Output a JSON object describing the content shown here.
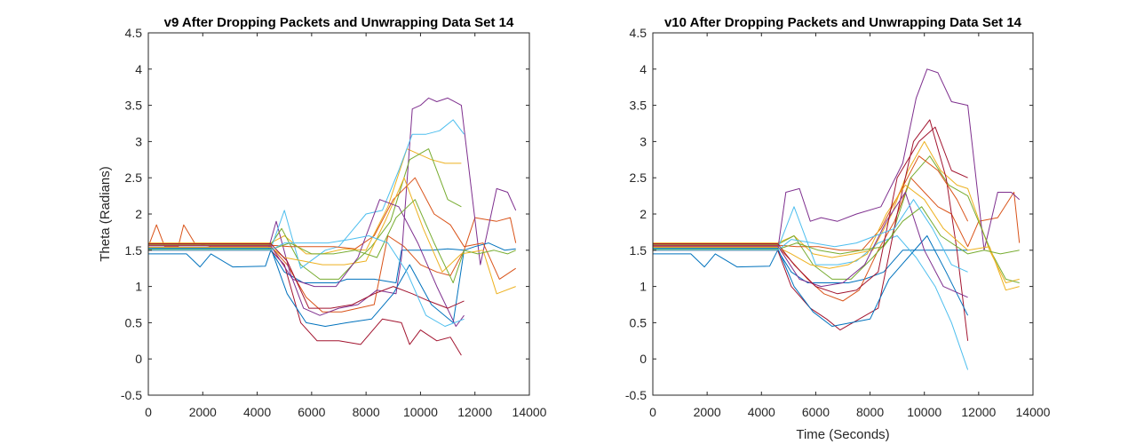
{
  "chart_data": [
    {
      "type": "line",
      "title": "v9 After Dropping Packets and Unwrapping Data Set 14",
      "xlabel": "",
      "ylabel": "Theta (Radians)",
      "xlim": [
        0,
        14000
      ],
      "ylim": [
        -0.5,
        4.5
      ],
      "xticks": [
        0,
        2000,
        4000,
        6000,
        8000,
        10000,
        12000,
        14000
      ],
      "yticks": [
        -0.5,
        0,
        0.5,
        1,
        1.5,
        2,
        2.5,
        3,
        3.5,
        4,
        4.5
      ],
      "grid": false,
      "series": [
        {
          "color": "#0072BD",
          "x": [
            0,
            900,
            1400,
            1900,
            2300,
            3100,
            4300,
            4500,
            5000,
            5700,
            6000,
            6500,
            6900,
            7300,
            8300,
            9100,
            9300,
            10000,
            10400,
            11000,
            11600
          ],
          "y": [
            1.45,
            1.45,
            1.45,
            1.27,
            1.45,
            1.27,
            1.28,
            1.5,
            1.2,
            1.05,
            1.05,
            1.05,
            1.05,
            1.1,
            1.1,
            1.05,
            1.5,
            1.5,
            1.5,
            1.52,
            1.5
          ]
        },
        {
          "color": "#D95319",
          "x": [
            0,
            300,
            600,
            1100,
            1300,
            1700,
            2300,
            4500,
            5100,
            5800,
            6400,
            7100,
            8300,
            8800,
            9400,
            10000,
            10600,
            11100,
            11600,
            12000,
            12800,
            13300,
            13500
          ],
          "y": [
            1.55,
            1.85,
            1.55,
            1.55,
            1.85,
            1.6,
            1.55,
            1.55,
            1.3,
            0.85,
            0.65,
            0.65,
            0.75,
            1.7,
            1.55,
            1.3,
            1.2,
            1.15,
            1.5,
            1.95,
            1.9,
            1.95,
            1.6
          ]
        },
        {
          "color": "#EDB120",
          "x": [
            0,
            1000,
            2500,
            4500,
            5000,
            5800,
            6400,
            7200,
            8000,
            8800,
            9500,
            10400,
            10900,
            11500
          ],
          "y": [
            1.6,
            1.6,
            1.6,
            1.6,
            1.7,
            1.45,
            1.45,
            1.52,
            1.5,
            2.1,
            2.9,
            2.75,
            2.7,
            2.7
          ]
        },
        {
          "color": "#7E2F8E",
          "x": [
            0,
            4400,
            4700,
            5200,
            5700,
            6300,
            7000,
            7700,
            8400,
            9100,
            9300,
            9700,
            10000,
            10300,
            10600,
            11000,
            11500,
            12200,
            12800,
            13200,
            13500
          ],
          "y": [
            1.5,
            1.5,
            1.9,
            1.2,
            0.7,
            0.6,
            0.7,
            0.75,
            0.95,
            0.9,
            1.4,
            3.45,
            3.5,
            3.6,
            3.55,
            3.6,
            3.5,
            1.3,
            2.35,
            2.3,
            2.05
          ]
        },
        {
          "color": "#77AC30",
          "x": [
            0,
            4500,
            4900,
            5600,
            6300,
            7000,
            7500,
            8200,
            8900,
            9600,
            10300,
            11000,
            11500
          ],
          "y": [
            1.58,
            1.58,
            1.8,
            1.3,
            1.1,
            1.1,
            1.3,
            1.55,
            1.9,
            2.75,
            2.9,
            2.2,
            2.1
          ]
        },
        {
          "color": "#4DBEEE",
          "x": [
            0,
            4500,
            5000,
            5600,
            6500,
            7000,
            8000,
            8600,
            9200,
            9700,
            10200,
            10700,
            11200,
            11600
          ],
          "y": [
            1.52,
            1.52,
            2.05,
            1.25,
            1.5,
            1.55,
            2.0,
            2.05,
            2.6,
            3.1,
            3.1,
            3.15,
            3.3,
            3.1
          ]
        },
        {
          "color": "#A2142F",
          "x": [
            0,
            4500,
            5000,
            5600,
            6200,
            7000,
            7800,
            8600,
            9300,
            9600,
            10000,
            10600,
            11100,
            11500
          ],
          "y": [
            1.5,
            1.5,
            1.3,
            0.5,
            0.25,
            0.25,
            0.2,
            0.55,
            0.5,
            0.2,
            0.4,
            0.25,
            0.3,
            0.05
          ]
        },
        {
          "color": "#0072BD",
          "x": [
            0,
            4500,
            5100,
            5800,
            6500,
            7300,
            8200,
            9000,
            9600,
            10400,
            11200,
            11600,
            12000,
            12500,
            13100,
            13500
          ],
          "y": [
            1.53,
            1.53,
            0.9,
            0.5,
            0.45,
            0.5,
            0.55,
            0.9,
            1.3,
            0.75,
            0.5,
            1.5,
            1.55,
            1.6,
            1.5,
            1.52
          ]
        },
        {
          "color": "#D95319",
          "x": [
            0,
            4500,
            5200,
            6000,
            6800,
            7600,
            8300,
            9000,
            9800,
            10500,
            11100,
            11600,
            12300,
            12900,
            13500
          ],
          "y": [
            1.57,
            1.57,
            1.55,
            1.55,
            1.55,
            1.52,
            1.7,
            2.2,
            2.5,
            2.0,
            1.85,
            1.55,
            1.6,
            1.1,
            1.25
          ]
        },
        {
          "color": "#EDB120",
          "x": [
            0,
            4500,
            5000,
            5700,
            6400,
            7200,
            8000,
            8700,
            9400,
            10100,
            10800,
            11500,
            12300,
            12800,
            13500
          ],
          "y": [
            1.54,
            1.54,
            1.4,
            1.35,
            1.3,
            1.3,
            1.35,
            1.9,
            2.5,
            1.8,
            1.2,
            1.45,
            1.5,
            0.9,
            1.0
          ]
        },
        {
          "color": "#7E2F8E",
          "x": [
            0,
            4500,
            5300,
            6100,
            6900,
            7700,
            8500,
            9200,
            9900,
            10600,
            11300,
            11600
          ],
          "y": [
            1.56,
            1.56,
            1.1,
            1.0,
            1.0,
            1.4,
            2.2,
            2.1,
            1.6,
            1.0,
            0.45,
            0.6
          ]
        },
        {
          "color": "#77AC30",
          "x": [
            0,
            4500,
            5200,
            6000,
            6800,
            7600,
            8400,
            9100,
            9800,
            10500,
            11200,
            11600,
            12100,
            12700,
            13200,
            13500
          ],
          "y": [
            1.51,
            1.51,
            1.6,
            1.45,
            1.45,
            1.5,
            1.4,
            1.95,
            2.2,
            1.6,
            1.05,
            1.5,
            1.45,
            1.5,
            1.45,
            1.5
          ]
        },
        {
          "color": "#A2142F",
          "x": [
            0,
            4500,
            5100,
            5900,
            6700,
            7500,
            8300,
            9000,
            9700,
            10300,
            11000,
            11600
          ],
          "y": [
            1.59,
            1.59,
            1.35,
            0.7,
            0.7,
            0.75,
            0.9,
            1.0,
            0.9,
            0.8,
            0.7,
            0.8
          ]
        },
        {
          "color": "#4DBEEE",
          "x": [
            0,
            4500,
            5000,
            5800,
            6600,
            7400,
            8100,
            8800,
            9500,
            10200,
            10900,
            11600
          ],
          "y": [
            1.5,
            1.5,
            1.6,
            1.6,
            1.6,
            1.65,
            1.7,
            1.6,
            1.2,
            0.6,
            0.45,
            0.55
          ]
        }
      ]
    },
    {
      "type": "line",
      "title": "v10 After Dropping Packets and Unwrapping Data Set 14",
      "xlabel": "Time (Seconds)",
      "ylabel": "",
      "xlim": [
        0,
        14000
      ],
      "ylim": [
        -0.5,
        4.5
      ],
      "xticks": [
        0,
        2000,
        4000,
        6000,
        8000,
        10000,
        12000,
        14000
      ],
      "yticks": [
        -0.5,
        0,
        0.5,
        1,
        1.5,
        2,
        2.5,
        3,
        3.5,
        4,
        4.5
      ],
      "grid": false,
      "series": [
        {
          "color": "#0072BD",
          "x": [
            0,
            900,
            1400,
            1900,
            2300,
            3100,
            4300,
            4600,
            5100,
            5700,
            6200,
            6700,
            7200,
            7800,
            8500,
            9200,
            9700,
            10400,
            11000,
            11600
          ],
          "y": [
            1.45,
            1.45,
            1.45,
            1.27,
            1.45,
            1.27,
            1.28,
            1.5,
            1.2,
            1.05,
            1.05,
            1.05,
            1.05,
            1.1,
            1.2,
            1.5,
            1.5,
            1.5,
            1.5,
            1.5
          ]
        },
        {
          "color": "#D95319",
          "x": [
            0,
            4600,
            5100,
            5700,
            6300,
            7000,
            7600,
            8300,
            8900,
            9500,
            10000,
            10500,
            11000,
            11600,
            12000,
            12700,
            13300,
            13500
          ],
          "y": [
            1.55,
            1.55,
            1.35,
            1.1,
            0.9,
            0.8,
            0.95,
            1.5,
            1.9,
            2.5,
            2.3,
            2.1,
            2.0,
            1.55,
            1.9,
            1.95,
            2.3,
            1.6
          ]
        },
        {
          "color": "#EDB120",
          "x": [
            0,
            4600,
            5200,
            5900,
            6600,
            7400,
            8100,
            8800,
            9400,
            10000,
            10600,
            11200,
            11600,
            12400,
            13000,
            13500
          ],
          "y": [
            1.6,
            1.6,
            1.7,
            1.45,
            1.4,
            1.45,
            1.5,
            2.0,
            2.6,
            3.0,
            2.6,
            2.4,
            2.35,
            1.5,
            1.05,
            1.1
          ]
        },
        {
          "color": "#7E2F8E",
          "x": [
            0,
            4600,
            4900,
            5400,
            5800,
            6200,
            6800,
            7500,
            8400,
            9200,
            9700,
            10100,
            10500,
            11000,
            11600,
            12200,
            12700,
            13200,
            13500
          ],
          "y": [
            1.5,
            1.5,
            2.3,
            2.35,
            1.9,
            1.95,
            1.9,
            2.0,
            2.1,
            2.7,
            3.6,
            4.0,
            3.95,
            3.55,
            3.5,
            1.5,
            2.3,
            2.3,
            2.2
          ]
        },
        {
          "color": "#77AC30",
          "x": [
            0,
            4600,
            5200,
            5900,
            6600,
            7300,
            8100,
            8800,
            9500,
            10200,
            10900,
            11600,
            12500,
            13000,
            13500
          ],
          "y": [
            1.58,
            1.58,
            1.7,
            1.3,
            1.1,
            1.1,
            1.4,
            1.7,
            2.5,
            2.8,
            2.4,
            2.25,
            1.45,
            1.1,
            1.05
          ]
        },
        {
          "color": "#4DBEEE",
          "x": [
            0,
            4600,
            5200,
            6000,
            6800,
            7500,
            8300,
            9000,
            9700,
            10400,
            11000,
            11600
          ],
          "y": [
            1.52,
            1.52,
            2.1,
            1.3,
            1.3,
            1.35,
            1.6,
            1.7,
            1.4,
            1.0,
            0.5,
            -0.15
          ]
        },
        {
          "color": "#A2142F",
          "x": [
            0,
            4600,
            5100,
            5800,
            6400,
            6900,
            7600,
            8300,
            9000,
            9600,
            10200,
            10800,
            11200,
            11600
          ],
          "y": [
            1.5,
            1.5,
            1.0,
            0.7,
            0.55,
            0.4,
            0.55,
            0.7,
            2.0,
            3.0,
            3.3,
            2.5,
            1.5,
            0.25
          ]
        },
        {
          "color": "#0072BD",
          "x": [
            0,
            4600,
            5200,
            5900,
            6600,
            7300,
            8000,
            8700,
            9400,
            10100,
            10800,
            11600
          ],
          "y": [
            1.53,
            1.53,
            1.0,
            0.65,
            0.45,
            0.5,
            0.55,
            1.1,
            1.4,
            1.7,
            1.2,
            0.6
          ]
        },
        {
          "color": "#D95319",
          "x": [
            0,
            4600,
            5300,
            6100,
            6900,
            7700,
            8400,
            9100,
            9800,
            10500,
            11200,
            11600
          ],
          "y": [
            1.57,
            1.57,
            1.55,
            1.55,
            1.5,
            1.5,
            1.8,
            2.3,
            2.8,
            2.6,
            2.2,
            1.9
          ]
        },
        {
          "color": "#EDB120",
          "x": [
            0,
            4600,
            5100,
            5800,
            6500,
            7200,
            7900,
            8600,
            9300,
            10000,
            10700,
            11600,
            12400,
            13000,
            13500
          ],
          "y": [
            1.54,
            1.54,
            1.45,
            1.3,
            1.25,
            1.3,
            1.45,
            2.0,
            2.4,
            2.2,
            1.8,
            1.5,
            1.55,
            0.95,
            1.0
          ]
        },
        {
          "color": "#7E2F8E",
          "x": [
            0,
            4600,
            5400,
            6200,
            7000,
            7800,
            8600,
            9300,
            10000,
            10700,
            11600
          ],
          "y": [
            1.56,
            1.56,
            1.1,
            1.0,
            1.05,
            1.3,
            1.9,
            2.3,
            1.5,
            1.0,
            0.85
          ]
        },
        {
          "color": "#77AC30",
          "x": [
            0,
            4600,
            5300,
            6100,
            6900,
            7700,
            8500,
            9200,
            9900,
            10600,
            11600,
            12200,
            12800,
            13500
          ],
          "y": [
            1.51,
            1.51,
            1.6,
            1.5,
            1.45,
            1.5,
            1.55,
            1.9,
            2.1,
            1.7,
            1.45,
            1.5,
            1.45,
            1.5
          ]
        },
        {
          "color": "#A2142F",
          "x": [
            0,
            4600,
            5200,
            6000,
            6800,
            7500,
            8300,
            9000,
            9800,
            10400,
            11000,
            11600
          ],
          "y": [
            1.59,
            1.59,
            1.3,
            1.0,
            0.9,
            0.95,
            1.2,
            2.5,
            3.0,
            3.2,
            2.6,
            2.5
          ]
        },
        {
          "color": "#4DBEEE",
          "x": [
            0,
            4600,
            5100,
            5900,
            6700,
            7500,
            8200,
            8900,
            9600,
            10300,
            11000,
            11600
          ],
          "y": [
            1.5,
            1.5,
            1.65,
            1.6,
            1.55,
            1.6,
            1.7,
            1.8,
            2.2,
            1.8,
            1.3,
            1.2
          ]
        }
      ]
    }
  ]
}
